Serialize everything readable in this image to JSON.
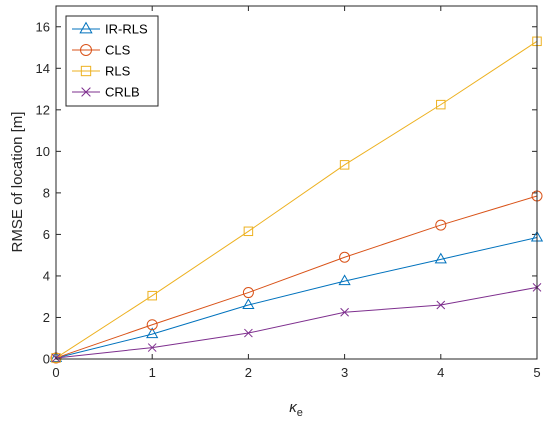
{
  "chart_data": {
    "type": "line",
    "title": "",
    "xlabel": "κ",
    "xlabel_sub": "e",
    "ylabel": "RMSE of location [m]",
    "xlim": [
      0,
      5
    ],
    "ylim": [
      0,
      17
    ],
    "xticks": [
      0,
      1,
      2,
      3,
      4,
      5
    ],
    "yticks": [
      0,
      2,
      4,
      6,
      8,
      10,
      12,
      14,
      16
    ],
    "grid": false,
    "legend_position": "top-left",
    "x": [
      0,
      1,
      2,
      3,
      4,
      5
    ],
    "series": [
      {
        "name": "IR-RLS",
        "values": [
          0.05,
          1.2,
          2.6,
          3.75,
          4.8,
          5.85
        ],
        "color": "#0072BD",
        "marker": "triangle"
      },
      {
        "name": "CLS",
        "values": [
          0.05,
          1.65,
          3.2,
          4.9,
          6.45,
          7.85
        ],
        "color": "#D95319",
        "marker": "circle"
      },
      {
        "name": "RLS",
        "values": [
          0.05,
          3.05,
          6.15,
          9.35,
          12.25,
          15.3
        ],
        "color": "#EDB120",
        "marker": "square"
      },
      {
        "name": "CRLB",
        "values": [
          0.05,
          0.55,
          1.25,
          2.25,
          2.6,
          3.45
        ],
        "color": "#7E2F8E",
        "marker": "x"
      }
    ]
  }
}
